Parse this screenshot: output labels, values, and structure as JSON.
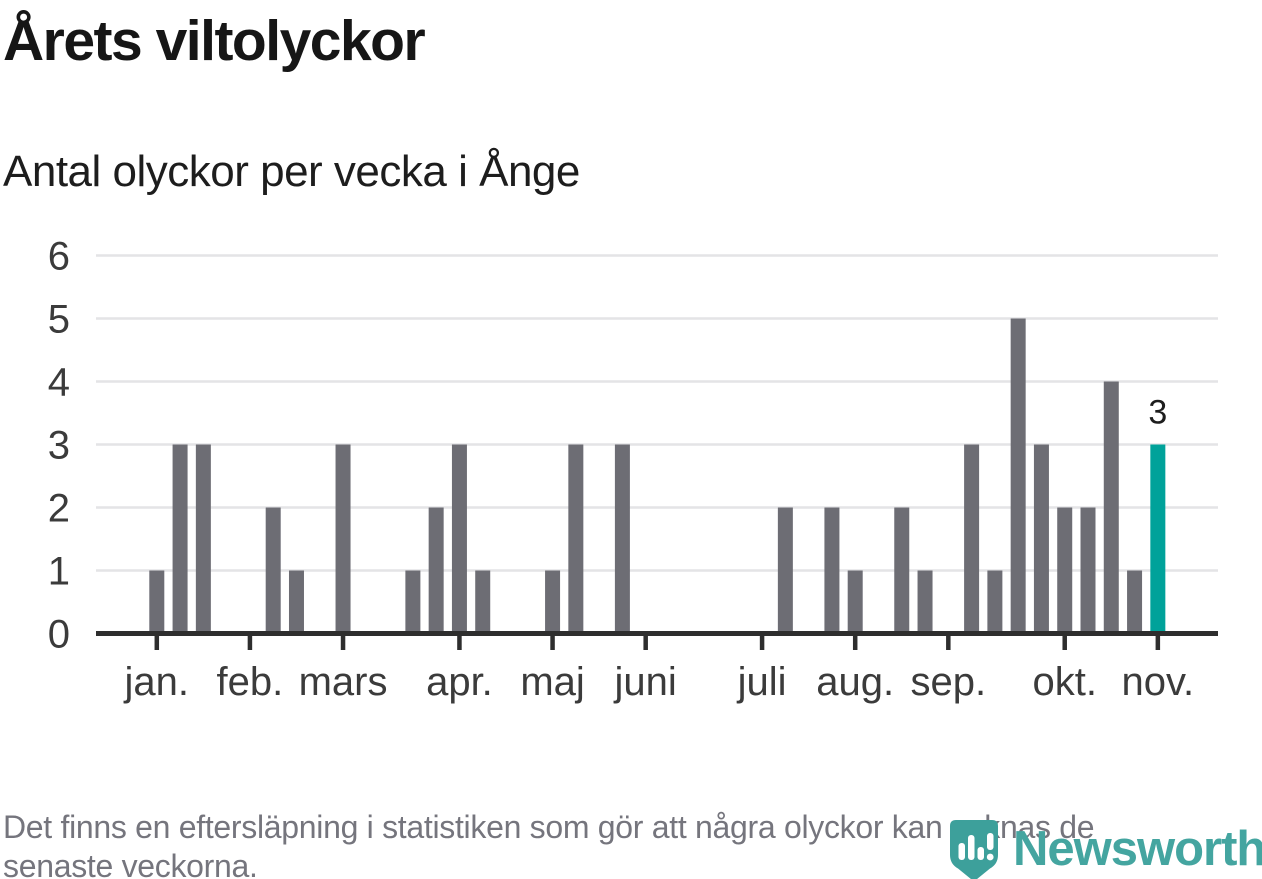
{
  "title": "Årets viltolyckor",
  "subtitle": "Antal olyckor per vecka i Ånge",
  "footer": {
    "line1": "Det finns en eftersläpning i statistiken som gör att några olyckor kan saknas de",
    "line2": "senaste veckorna."
  },
  "logo": {
    "wordmark": "Newsworthy",
    "icon": "newsworthy-shield-barchart",
    "wordmark_color": "#44a5a0",
    "shield_color": "#3da09b"
  },
  "chart_data": {
    "type": "bar",
    "title": "Årets viltolyckor",
    "subtitle": "Antal olyckor per vecka i Ånge",
    "xlabel": "",
    "ylabel": "",
    "x_unit": "vecka",
    "categories_unit": "week-of-year",
    "values": [
      1,
      3,
      3,
      0,
      0,
      2,
      1,
      0,
      3,
      0,
      0,
      1,
      2,
      3,
      1,
      0,
      0,
      1,
      3,
      0,
      3,
      0,
      0,
      0,
      0,
      0,
      0,
      2,
      0,
      2,
      1,
      0,
      2,
      1,
      0,
      3,
      1,
      5,
      3,
      2,
      2,
      4,
      1,
      3
    ],
    "month_ticks": [
      {
        "label": "jan.",
        "week": 0
      },
      {
        "label": "feb.",
        "week": 4
      },
      {
        "label": "mars",
        "week": 8
      },
      {
        "label": "apr.",
        "week": 13
      },
      {
        "label": "maj",
        "week": 17
      },
      {
        "label": "juni",
        "week": 21
      },
      {
        "label": "juli",
        "week": 26
      },
      {
        "label": "aug.",
        "week": 30
      },
      {
        "label": "sep.",
        "week": 34
      },
      {
        "label": "okt.",
        "week": 39
      },
      {
        "label": "nov.",
        "week": 43
      }
    ],
    "yticks": [
      0,
      1,
      2,
      3,
      4,
      5,
      6
    ],
    "ylim": [
      0,
      6
    ],
    "grid": true,
    "legend": false,
    "highlight_last_bar": true,
    "annotation": {
      "text": "3",
      "week": 43
    },
    "colors": {
      "bar": "#6d6d74",
      "highlight": "#00a29a",
      "grid": "#e4e4e6",
      "axis": "#2e2e2e",
      "tick_label": "#3b3b3b",
      "annotation": "#1d1d1d"
    }
  }
}
